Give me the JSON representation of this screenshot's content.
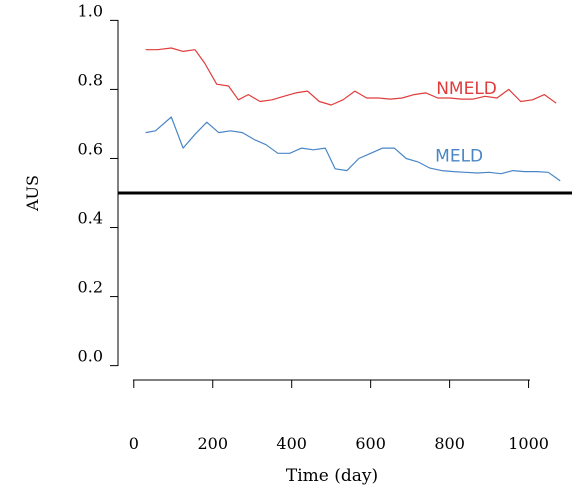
{
  "chart_data": {
    "type": "line",
    "xlabel": "Time (day)",
    "ylabel": "AUS",
    "xlim": [
      -40,
      1110
    ],
    "ylim": [
      -0.03,
      1.03
    ],
    "x_ticks": [
      0,
      200,
      400,
      600,
      800,
      1000
    ],
    "x_tick_labels": [
      "0",
      "200",
      "400",
      "600",
      "800",
      "1000"
    ],
    "y_ticks": [
      0.0,
      0.2,
      0.4,
      0.6,
      0.8,
      1.0
    ],
    "y_tick_labels": [
      "0.0",
      "0.2",
      "0.4",
      "0.6",
      "0.8",
      "1.0"
    ],
    "reference_line": {
      "y": 0.5,
      "color": "#000000"
    },
    "grid": false,
    "series": [
      {
        "name": "NMELD",
        "color": "#e03c3c",
        "x": [
          30,
          60,
          95,
          125,
          155,
          180,
          210,
          240,
          265,
          290,
          320,
          350,
          380,
          410,
          440,
          470,
          500,
          530,
          560,
          590,
          620,
          650,
          680,
          710,
          740,
          770,
          800,
          830,
          860,
          890,
          920,
          950,
          980,
          1010,
          1040,
          1070
        ],
        "values": [
          0.915,
          0.915,
          0.92,
          0.91,
          0.915,
          0.875,
          0.815,
          0.81,
          0.77,
          0.785,
          0.765,
          0.77,
          0.78,
          0.79,
          0.795,
          0.765,
          0.755,
          0.77,
          0.795,
          0.775,
          0.775,
          0.772,
          0.775,
          0.785,
          0.79,
          0.775,
          0.775,
          0.772,
          0.772,
          0.78,
          0.775,
          0.8,
          0.765,
          0.77,
          0.785,
          0.76
        ]
      },
      {
        "name": "MELD",
        "color": "#4a86c6",
        "x": [
          30,
          55,
          95,
          125,
          155,
          185,
          215,
          245,
          275,
          305,
          335,
          365,
          395,
          425,
          455,
          485,
          510,
          540,
          570,
          600,
          630,
          660,
          690,
          720,
          750,
          780,
          810,
          840,
          870,
          900,
          930,
          960,
          990,
          1020,
          1050,
          1080
        ],
        "values": [
          0.675,
          0.68,
          0.72,
          0.63,
          0.67,
          0.705,
          0.675,
          0.68,
          0.675,
          0.655,
          0.64,
          0.615,
          0.615,
          0.63,
          0.625,
          0.63,
          0.57,
          0.565,
          0.6,
          0.615,
          0.63,
          0.63,
          0.6,
          0.59,
          0.572,
          0.565,
          0.562,
          0.56,
          0.558,
          0.56,
          0.556,
          0.565,
          0.562,
          0.562,
          0.56,
          0.535
        ]
      }
    ]
  }
}
